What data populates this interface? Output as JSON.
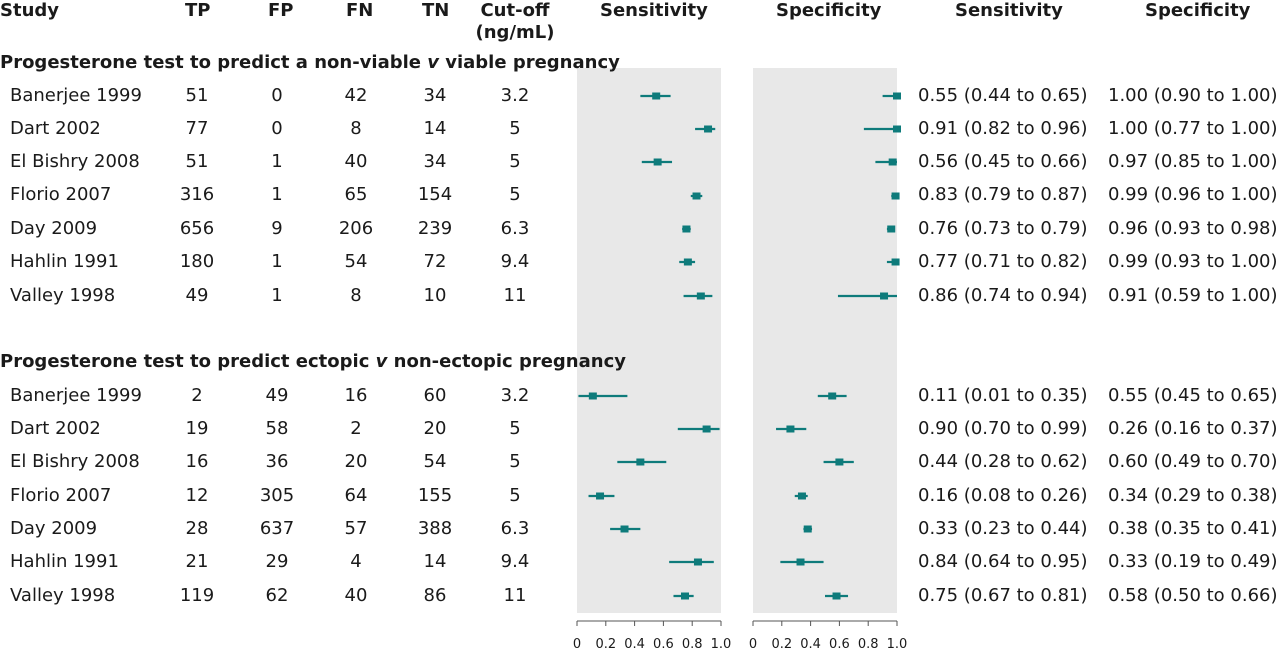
{
  "headers": {
    "study": "Study",
    "tp": "TP",
    "fp": "FP",
    "fn": "FN",
    "tn": "TN",
    "cutoff": "Cut-off",
    "cutoff_unit": "(ng/mL)",
    "sensitivity_plot": "Sensitivity",
    "specificity_plot": "Specificity",
    "sensitivity_ci": "Sensitivity",
    "specificity_ci": "Specificity"
  },
  "sections": [
    {
      "title_pre": "Progesterone test to predict a non-viable ",
      "title_italic": "v",
      "title_post": " viable pregnancy",
      "rows": [
        {
          "study": "Banerjee 1999",
          "tp": "51",
          "fp": "0",
          "fn": "42",
          "tn": "34",
          "cutoff": "3.2",
          "sens_ci": "0.55 (0.44 to 0.65)",
          "spec_ci": "1.00 (0.90 to 1.00)"
        },
        {
          "study": "Dart 2002",
          "tp": "77",
          "fp": "0",
          "fn": "8",
          "tn": "14",
          "cutoff": "5",
          "sens_ci": "0.91 (0.82 to 0.96)",
          "spec_ci": "1.00 (0.77 to 1.00)"
        },
        {
          "study": "El Bishry 2008",
          "tp": "51",
          "fp": "1",
          "fn": "40",
          "tn": "34",
          "cutoff": "5",
          "sens_ci": "0.56 (0.45 to 0.66)",
          "spec_ci": "0.97 (0.85 to 1.00)"
        },
        {
          "study": "Florio 2007",
          "tp": "316",
          "fp": "1",
          "fn": "65",
          "tn": "154",
          "cutoff": "5",
          "sens_ci": "0.83 (0.79 to 0.87)",
          "spec_ci": "0.99 (0.96 to 1.00)"
        },
        {
          "study": "Day 2009",
          "tp": "656",
          "fp": "9",
          "fn": "206",
          "tn": "239",
          "cutoff": "6.3",
          "sens_ci": "0.76 (0.73 to 0.79)",
          "spec_ci": "0.96 (0.93 to 0.98)"
        },
        {
          "study": "Hahlin 1991",
          "tp": "180",
          "fp": "1",
          "fn": "54",
          "tn": "72",
          "cutoff": "9.4",
          "sens_ci": "0.77 (0.71 to 0.82)",
          "spec_ci": "0.99 (0.93 to 1.00)"
        },
        {
          "study": "Valley 1998",
          "tp": "49",
          "fp": "1",
          "fn": "8",
          "tn": "10",
          "cutoff": "11",
          "sens_ci": "0.86 (0.74 to 0.94)",
          "spec_ci": "0.91 (0.59 to 1.00)"
        }
      ]
    },
    {
      "title_pre": "Progesterone test to predict ectopic ",
      "title_italic": "v",
      "title_post": " non-ectopic pregnancy",
      "rows": [
        {
          "study": "Banerjee 1999",
          "tp": "2",
          "fp": "49",
          "fn": "16",
          "tn": "60",
          "cutoff": "3.2",
          "sens_ci": "0.11 (0.01 to 0.35)",
          "spec_ci": "0.55 (0.45 to 0.65)"
        },
        {
          "study": "Dart 2002",
          "tp": "19",
          "fp": "58",
          "fn": "2",
          "tn": "20",
          "cutoff": "5",
          "sens_ci": "0.90 (0.70 to 0.99)",
          "spec_ci": "0.26 (0.16 to 0.37)"
        },
        {
          "study": "El Bishry 2008",
          "tp": "16",
          "fp": "36",
          "fn": "20",
          "tn": "54",
          "cutoff": "5",
          "sens_ci": "0.44 (0.28 to 0.62)",
          "spec_ci": "0.60 (0.49 to 0.70)"
        },
        {
          "study": "Florio 2007",
          "tp": "12",
          "fp": "305",
          "fn": "64",
          "tn": "155",
          "cutoff": "5",
          "sens_ci": "0.16 (0.08 to 0.26)",
          "spec_ci": "0.34 (0.29 to 0.38)"
        },
        {
          "study": "Day 2009",
          "tp": "28",
          "fp": "637",
          "fn": "57",
          "tn": "388",
          "cutoff": "6.3",
          "sens_ci": "0.33 (0.23 to 0.44)",
          "spec_ci": "0.38 (0.35 to 0.41)"
        },
        {
          "study": "Hahlin 1991",
          "tp": "21",
          "fp": "29",
          "fn": "4",
          "tn": "14",
          "cutoff": "9.4",
          "sens_ci": "0.84 (0.64 to 0.95)",
          "spec_ci": "0.33 (0.19 to 0.49)"
        },
        {
          "study": "Valley 1998",
          "tp": "119",
          "fp": "62",
          "fn": "40",
          "tn": "86",
          "cutoff": "11",
          "sens_ci": "0.75 (0.67 to 0.81)",
          "spec_ci": "0.58 (0.50 to 0.66)"
        }
      ]
    }
  ],
  "axis_ticks": [
    "0",
    "0.2",
    "0.4",
    "0.6",
    "0.8",
    "1.0"
  ],
  "colors": {
    "marker": "#0e7b7b",
    "panel": "#e8e8e8"
  },
  "chart_data": {
    "type": "forest",
    "xlim": [
      0,
      1
    ],
    "panels": [
      "Sensitivity",
      "Specificity"
    ],
    "series": [
      {
        "name": "Progesterone test to predict a non-viable v viable pregnancy",
        "studies": [
          "Banerjee 1999",
          "Dart 2002",
          "El Bishry 2008",
          "Florio 2007",
          "Day 2009",
          "Hahlin 1991",
          "Valley 1998"
        ],
        "sensitivity": [
          [
            0.55,
            0.44,
            0.65
          ],
          [
            0.91,
            0.82,
            0.96
          ],
          [
            0.56,
            0.45,
            0.66
          ],
          [
            0.83,
            0.79,
            0.87
          ],
          [
            0.76,
            0.73,
            0.79
          ],
          [
            0.77,
            0.71,
            0.82
          ],
          [
            0.86,
            0.74,
            0.94
          ]
        ],
        "specificity": [
          [
            1.0,
            0.9,
            1.0
          ],
          [
            1.0,
            0.77,
            1.0
          ],
          [
            0.97,
            0.85,
            1.0
          ],
          [
            0.99,
            0.96,
            1.0
          ],
          [
            0.96,
            0.93,
            0.98
          ],
          [
            0.99,
            0.93,
            1.0
          ],
          [
            0.91,
            0.59,
            1.0
          ]
        ]
      },
      {
        "name": "Progesterone test to predict ectopic v non-ectopic pregnancy",
        "studies": [
          "Banerjee 1999",
          "Dart 2002",
          "El Bishry 2008",
          "Florio 2007",
          "Day 2009",
          "Hahlin 1991",
          "Valley 1998"
        ],
        "sensitivity": [
          [
            0.11,
            0.01,
            0.35
          ],
          [
            0.9,
            0.7,
            0.99
          ],
          [
            0.44,
            0.28,
            0.62
          ],
          [
            0.16,
            0.08,
            0.26
          ],
          [
            0.33,
            0.23,
            0.44
          ],
          [
            0.84,
            0.64,
            0.95
          ],
          [
            0.75,
            0.67,
            0.81
          ]
        ],
        "specificity": [
          [
            0.55,
            0.45,
            0.65
          ],
          [
            0.26,
            0.16,
            0.37
          ],
          [
            0.6,
            0.49,
            0.7
          ],
          [
            0.34,
            0.29,
            0.38
          ],
          [
            0.38,
            0.35,
            0.41
          ],
          [
            0.33,
            0.19,
            0.49
          ],
          [
            0.58,
            0.5,
            0.66
          ]
        ]
      }
    ]
  }
}
